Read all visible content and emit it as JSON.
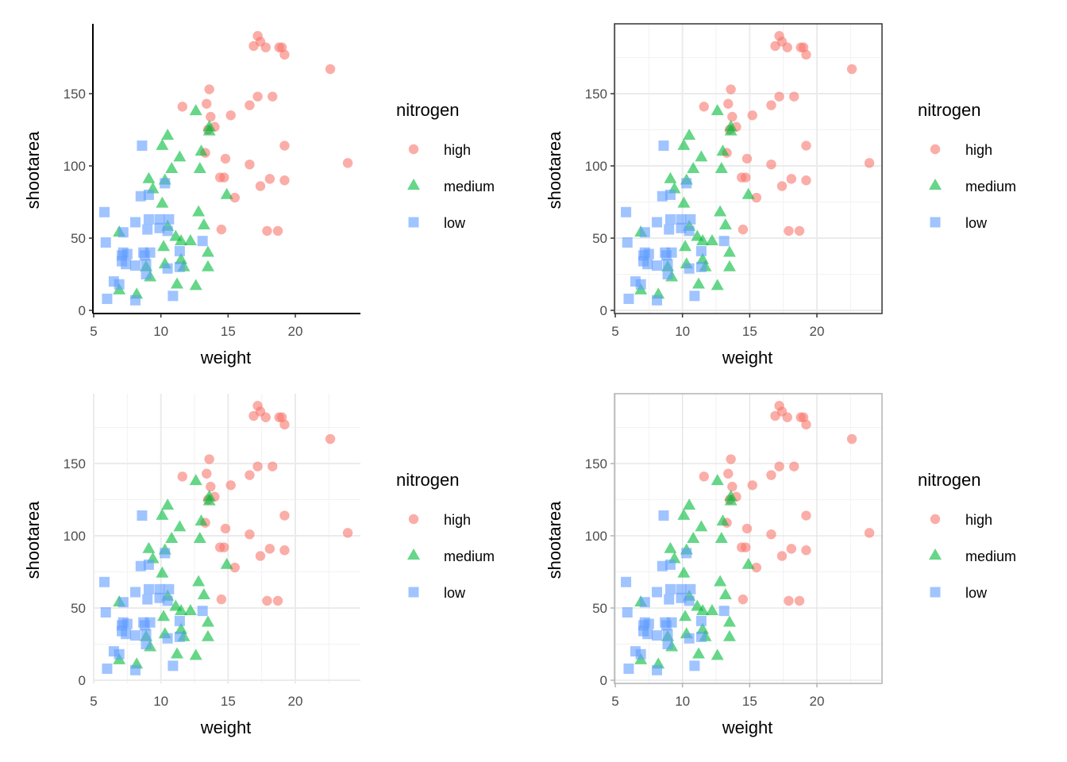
{
  "chart_data": {
    "type": "scatter",
    "layout": "2x2 grid of identical scatter plots rendered with four different themes",
    "panels": [
      {
        "id": "top-left",
        "theme": "classic (axis lines, no grid)"
      },
      {
        "id": "top-right",
        "theme": "linedraw/bw (dark border, grey grid)"
      },
      {
        "id": "bottom-left",
        "theme": "minimal (grid only, no axis lines, no ticks)"
      },
      {
        "id": "bottom-right",
        "theme": "light (grey border, light grid, grey ticks)"
      }
    ],
    "xlabel": "weight",
    "ylabel": "shootarea",
    "xlim": [
      4.9,
      24.5
    ],
    "ylim": [
      -2,
      198
    ],
    "x_ticks": [
      5,
      10,
      15,
      20
    ],
    "y_ticks": [
      0,
      50,
      100,
      150
    ],
    "x_tick_labels": [
      "5",
      "10",
      "15",
      "20"
    ],
    "y_tick_labels": [
      "0",
      "50",
      "100",
      "150"
    ],
    "legend": {
      "title": "nitrogen",
      "position": "right",
      "entries": [
        {
          "label": "high",
          "shape": "circle",
          "color": "#F8766D"
        },
        {
          "label": "medium",
          "shape": "triangle",
          "color": "#00BA38"
        },
        {
          "label": "low",
          "shape": "square",
          "color": "#619CFF"
        }
      ]
    },
    "alpha": 0.6,
    "series": [
      {
        "name": "high",
        "shape": "circle",
        "color": "#F8766D",
        "points": [
          [
            17.2,
            190
          ],
          [
            16.9,
            183
          ],
          [
            17.4,
            186
          ],
          [
            17.8,
            182
          ],
          [
            18.8,
            182
          ],
          [
            19.0,
            182
          ],
          [
            19.2,
            177
          ],
          [
            22.6,
            167
          ],
          [
            13.6,
            153
          ],
          [
            11.6,
            141
          ],
          [
            13.4,
            143
          ],
          [
            13.7,
            134
          ],
          [
            15.2,
            135
          ],
          [
            16.6,
            142
          ],
          [
            17.2,
            148
          ],
          [
            18.3,
            148
          ],
          [
            13.5,
            125
          ],
          [
            14.0,
            127
          ],
          [
            13.3,
            109
          ],
          [
            14.8,
            105
          ],
          [
            16.6,
            101
          ],
          [
            14.4,
            92
          ],
          [
            14.7,
            92
          ],
          [
            17.4,
            86
          ],
          [
            18.1,
            91
          ],
          [
            19.2,
            90
          ],
          [
            19.2,
            114
          ],
          [
            23.9,
            102
          ],
          [
            15.5,
            78
          ],
          [
            14.5,
            56
          ],
          [
            17.9,
            55
          ],
          [
            18.7,
            55
          ]
        ]
      },
      {
        "name": "medium",
        "shape": "triangle",
        "color": "#00BA38",
        "points": [
          [
            12.6,
            138
          ],
          [
            10.5,
            121
          ],
          [
            10.1,
            114
          ],
          [
            11.4,
            106
          ],
          [
            10.8,
            98
          ],
          [
            13.0,
            110
          ],
          [
            12.9,
            98
          ],
          [
            13.6,
            127
          ],
          [
            13.6,
            124
          ],
          [
            9.1,
            91
          ],
          [
            10.3,
            90
          ],
          [
            9.4,
            84
          ],
          [
            10.1,
            74
          ],
          [
            14.9,
            80
          ],
          [
            12.8,
            68
          ],
          [
            13.2,
            59
          ],
          [
            6.9,
            54
          ],
          [
            10.5,
            58
          ],
          [
            11.1,
            51
          ],
          [
            11.5,
            48
          ],
          [
            12.2,
            48
          ],
          [
            10.2,
            44
          ],
          [
            11.5,
            35
          ],
          [
            13.5,
            40
          ],
          [
            13.5,
            30
          ],
          [
            11.7,
            30
          ],
          [
            8.9,
            30
          ],
          [
            10.3,
            32
          ],
          [
            6.9,
            14
          ],
          [
            9.2,
            23
          ],
          [
            11.2,
            18
          ],
          [
            12.6,
            17
          ],
          [
            8.2,
            11
          ]
        ]
      },
      {
        "name": "low",
        "shape": "square",
        "color": "#619CFF",
        "points": [
          [
            8.6,
            114
          ],
          [
            10.3,
            88
          ],
          [
            8.5,
            79
          ],
          [
            9.1,
            80
          ],
          [
            5.8,
            68
          ],
          [
            8.1,
            61
          ],
          [
            9.1,
            63
          ],
          [
            9.9,
            63
          ],
          [
            10.6,
            63
          ],
          [
            9.0,
            56
          ],
          [
            9.9,
            57
          ],
          [
            10.5,
            55
          ],
          [
            7.2,
            54
          ],
          [
            5.9,
            47
          ],
          [
            13.1,
            48
          ],
          [
            11.4,
            41
          ],
          [
            7.1,
            38
          ],
          [
            7.5,
            39
          ],
          [
            8.7,
            40
          ],
          [
            9.2,
            40
          ],
          [
            7.1,
            34
          ],
          [
            7.4,
            32
          ],
          [
            8.1,
            31
          ],
          [
            8.9,
            32
          ],
          [
            8.9,
            25
          ],
          [
            10.5,
            29
          ],
          [
            11.4,
            30
          ],
          [
            6.5,
            20
          ],
          [
            6.9,
            18
          ],
          [
            6.0,
            8
          ],
          [
            8.1,
            7
          ],
          [
            10.9,
            10
          ],
          [
            8.8,
            38
          ],
          [
            7.2,
            40
          ]
        ]
      }
    ]
  }
}
